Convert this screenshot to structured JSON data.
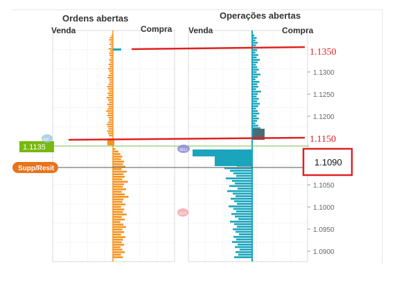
{
  "colors": {
    "orders_bar": "#f7931e",
    "positions_bar": "#1aa5bd",
    "annotation": "#e02020",
    "price_badge": "#78b80f",
    "supp_resist_badge": "#e8731b",
    "grid": "#c8c8c8",
    "price_line_green": "#7ab84a",
    "price_line_dark": "#555555"
  },
  "panels": {
    "orders": {
      "title": "Ordens abertas",
      "left_label": "Venda",
      "right_label": "Compra"
    },
    "positions": {
      "title": "Operações abertas",
      "left_label": "Venda",
      "right_label": "Compra"
    }
  },
  "price_axis": {
    "ticks": [
      "1.1300",
      "1.1250",
      "1.1200",
      "1.1050",
      "1.1000",
      "1.0950",
      "1.0900"
    ]
  },
  "current_price": {
    "label": "1.1135"
  },
  "supp_resist": {
    "label": "Supp/Resit"
  },
  "markers": {
    "sell_bubble_top": "Sell",
    "sell_bubble_mid": "SELL",
    "buy_bubble": "BUY"
  },
  "annotations": {
    "level_high": "1.1350",
    "level_mid": "1.1150",
    "highlight_box": "1.1090"
  },
  "depth": {
    "orders_sell_above": [
      3,
      6,
      8,
      5,
      7,
      4,
      9,
      6,
      8,
      7,
      5,
      8,
      6,
      9,
      7,
      10,
      8,
      6,
      9,
      11,
      8,
      7,
      9,
      12,
      10,
      8,
      11,
      9,
      13,
      10,
      8,
      12,
      9,
      11,
      14,
      10,
      12,
      9,
      8,
      10,
      13,
      11,
      9,
      12,
      10,
      8
    ],
    "orders_buy_below": [
      4,
      9,
      12,
      15,
      13,
      18,
      16,
      20,
      14,
      22,
      17,
      19,
      15,
      24,
      18,
      16,
      21,
      14,
      19,
      25,
      17,
      15,
      20,
      13,
      18,
      16,
      22,
      14,
      19,
      12,
      17,
      21,
      15,
      18,
      13,
      20,
      16,
      14,
      18,
      12,
      15,
      19,
      13,
      16
    ],
    "positions_buy_above": [
      4,
      8,
      6,
      10,
      7,
      12,
      9,
      6,
      11,
      8,
      14,
      10,
      7,
      9,
      12,
      8,
      15,
      10,
      6,
      13,
      9,
      11,
      7,
      16,
      10,
      8,
      12,
      9,
      14,
      11,
      7,
      10,
      13,
      8,
      12,
      9,
      6,
      11,
      15,
      18,
      22,
      14
    ],
    "positions_sell_below": [
      30,
      28,
      24,
      20,
      35,
      26,
      22,
      40,
      32,
      27,
      23,
      38,
      29,
      25,
      33,
      21,
      36,
      28,
      24,
      31,
      26,
      22,
      34,
      27,
      23,
      30,
      25,
      20,
      32,
      26,
      22,
      28,
      24,
      19,
      27,
      23,
      29,
      21,
      25,
      18,
      24,
      20,
      26
    ]
  }
}
